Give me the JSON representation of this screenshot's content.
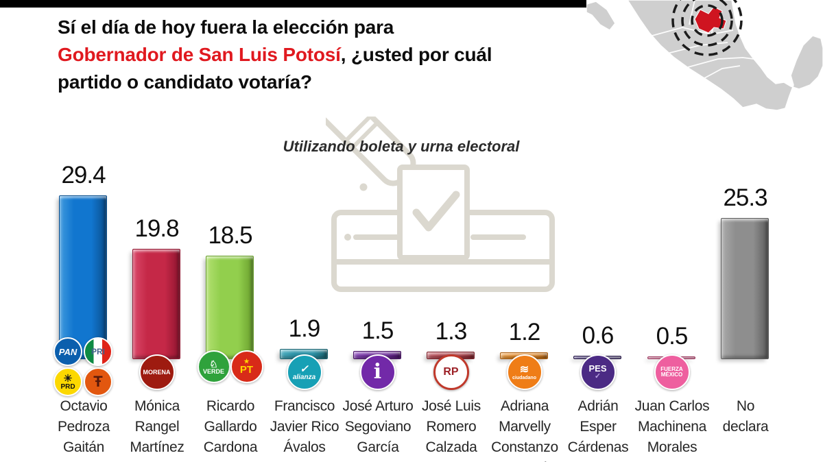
{
  "page": {
    "background": "#ffffff",
    "top_strip_color": "#000000"
  },
  "title": {
    "line1": "Sí el día de hoy fuera la elección para",
    "line2_red": "Gobernador de San Luis Potosí",
    "line2_rest": ", ¿usted por cuál",
    "line3": "partido o candidato votaría?",
    "red_color": "#e0191f"
  },
  "map": {
    "region": "México",
    "highlight": "San Luis Potosí",
    "land_color": "#cfcfcf",
    "highlight_color": "#cf1420"
  },
  "chart_data": {
    "type": "bar",
    "subtitle": "Utilizando boleta y urna electoral",
    "unit": "percent",
    "ylim": [
      0,
      32
    ],
    "grid": false,
    "value_labels": "above bars",
    "categories": [
      "Octavio Pedroza Gaitán",
      "Mónica Rangel Martínez",
      "Ricardo Gallardo Cardona",
      "Francisco Javier Rico Ávalos",
      "José Arturo Segoviano García",
      "José Luis Romero Calzada",
      "Adriana Marvelly Constanzo Rangel",
      "Adrián Esper Cárdenas",
      "Juan Carlos Machinena Morales",
      "No declara"
    ],
    "values": [
      29.4,
      19.8,
      18.5,
      1.9,
      1.5,
      1.3,
      1.2,
      0.6,
      0.5,
      25.3
    ],
    "bars": [
      {
        "id": "pedroza",
        "label": "29.4",
        "value": 29.4,
        "color": "#1176cf",
        "color_light": "#3f9ade",
        "color_dark": "#0a4e8c",
        "parties": [
          "pan",
          "pri",
          "prd",
          "pcp"
        ],
        "name_lines": [
          "Octavio",
          "Pedroza",
          "Gaitán"
        ]
      },
      {
        "id": "rangel",
        "label": "19.8",
        "value": 19.8,
        "color": "#c52847",
        "color_light": "#d9496a",
        "color_dark": "#8f1530",
        "parties": [
          "morena"
        ],
        "name_lines": [
          "Mónica",
          "Rangel",
          "Martínez"
        ]
      },
      {
        "id": "gallardo",
        "label": "18.5",
        "value": 18.5,
        "color": "#92cf4d",
        "color_light": "#b1e070",
        "color_dark": "#699f2d",
        "parties": [
          "verde",
          "pt"
        ],
        "name_lines": [
          "Ricardo",
          "Gallardo",
          "Cardona"
        ]
      },
      {
        "id": "rico",
        "label": "1.9",
        "value": 1.9,
        "color": "#2e95a9",
        "color_light": "#4fb0c2",
        "color_dark": "#19626f",
        "parties": [
          "alianza"
        ],
        "name_lines": [
          "Francisco",
          "Javier Rico",
          "Ávalos"
        ]
      },
      {
        "id": "segoviano",
        "label": "1.5",
        "value": 1.5,
        "color": "#7230a0",
        "color_light": "#9150c0",
        "color_dark": "#471263",
        "parties": [
          "independiente"
        ],
        "name_lines": [
          "José Arturo",
          "Segoviano",
          "García"
        ]
      },
      {
        "id": "romero",
        "label": "1.3",
        "value": 1.3,
        "color": "#b2434c",
        "color_light": "#c96670",
        "color_dark": "#7c1f28",
        "parties": [
          "rsp"
        ],
        "name_lines": [
          "José Luis",
          "Romero",
          "Calzada"
        ]
      },
      {
        "id": "constanzo",
        "label": "1.2",
        "value": 1.2,
        "color": "#e8861c",
        "color_light": "#f5a84e",
        "color_dark": "#aa5c0d",
        "parties": [
          "mc"
        ],
        "name_lines": [
          "Adriana",
          "Marvelly",
          "Constanzo",
          "Rangel"
        ]
      },
      {
        "id": "esper",
        "label": "0.6",
        "value": 0.6,
        "color": "#3e2c78",
        "color_light": "#5c4698",
        "color_dark": "#241645",
        "parties": [
          "pes"
        ],
        "name_lines": [
          "Adrián",
          "Esper",
          "Cárdenas"
        ]
      },
      {
        "id": "machinena",
        "label": "0.5",
        "value": 0.5,
        "color": "#d05080",
        "color_light": "#e4729c",
        "color_dark": "#993058",
        "parties": [
          "fxm"
        ],
        "name_lines": [
          "Juan Carlos",
          "Machinena",
          "Morales"
        ]
      },
      {
        "id": "no-declara",
        "label": "25.3",
        "value": 25.3,
        "color": "#8e8e8e",
        "color_light": "#ababab",
        "color_dark": "#5c5c5c",
        "parties": [],
        "name_lines": [
          "No",
          "declara"
        ]
      }
    ]
  },
  "party_logos": {
    "pan": {
      "name": "PAN",
      "label": "PAN",
      "bg": "#0b5fad",
      "fg": "#ffffff",
      "label_size": 13,
      "italic": true
    },
    "pri": {
      "name": "PRI",
      "label": "PRI",
      "stripes": [
        "#0e8a44",
        "#ffffff",
        "#df2318"
      ],
      "fg": "#44618c",
      "label_size": 12
    },
    "prd": {
      "name": "PRD",
      "glyph": "☀",
      "glyph_color": "#1a1a1a",
      "glyph_size": 15,
      "label": "PRD",
      "bg": "#fcd800",
      "fg": "#111111",
      "label_size": 10
    },
    "pcp": {
      "name": "Conciencia Popular",
      "glyph": "Ŧ",
      "glyph_color": "#58180a",
      "glyph_size": 22,
      "bg": "#e2570f"
    },
    "morena": {
      "name": "MORENA",
      "label": "MORENA",
      "bg": "#9e1b10",
      "fg": "#ffffff",
      "label_size": 9
    },
    "verde": {
      "name": "Partido Verde",
      "glyph": "♘",
      "glyph_color": "#ffffff",
      "glyph_size": 14,
      "label": "VERDE",
      "bg": "#2fa23c",
      "fg": "#ffffff",
      "label_size": 9
    },
    "pt": {
      "name": "Partido del Trabajo",
      "glyph": "★",
      "glyph_color": "#ffd500",
      "glyph_size": 9,
      "label": "PT",
      "bg": "#d82a18",
      "fg": "#ffd500",
      "label_size": 15
    },
    "alianza": {
      "name": "Nueva Alianza",
      "glyph": "✓",
      "glyph_color": "#ffffff",
      "glyph_size": 15,
      "label": "alianza",
      "bg": "#17a0b5",
      "fg": "#ffffff",
      "label_size": 10,
      "italic": true
    },
    "independiente": {
      "name": "Candidato independiente",
      "label": "i",
      "bg": "#7229a8",
      "fg": "#ffffff",
      "label_size": 30,
      "serif": true
    },
    "rsp": {
      "name": "Redes Sociales Progresistas",
      "label": "RP",
      "bg": "#ffffff",
      "ring": "#c0392b",
      "fg": "#9c2026",
      "label_size": 16
    },
    "mc": {
      "name": "Movimiento Ciudadano",
      "glyph": "≋",
      "glyph_color": "#ffffff",
      "glyph_size": 16,
      "label": "ciudadano",
      "bg": "#ef7d17",
      "fg": "#ffffff",
      "label_size": 7
    },
    "pes": {
      "name": "PES",
      "label": "PES",
      "glyph": "✓",
      "glyph_color": "#b9a3e3",
      "glyph_size": 11,
      "glyph_after": true,
      "bg": "#4b2a84",
      "fg": "#ffffff",
      "label_size": 13
    },
    "fxm": {
      "name": "Fuerza por México",
      "label": "FUERZA",
      "label2": "MÉXICO",
      "bg": "#ee5f9f",
      "fg": "#ffffff",
      "label_size": 8
    }
  }
}
